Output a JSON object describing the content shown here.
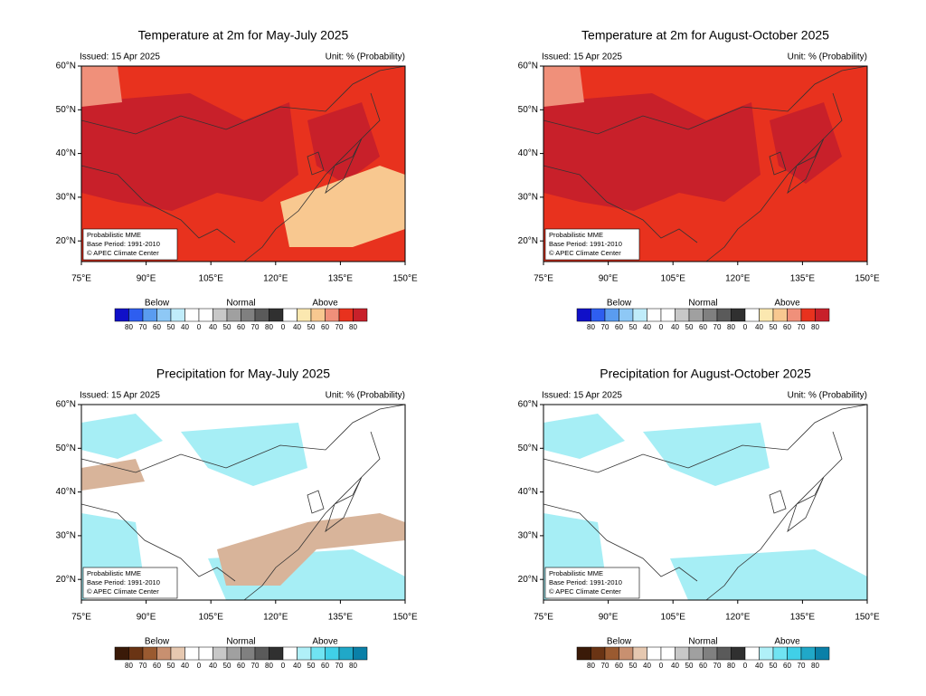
{
  "lat_labels": [
    "60°N",
    "50°N",
    "40°N",
    "30°N",
    "20°N"
  ],
  "lon_labels": [
    "75°E",
    "90°E",
    "105°E",
    "120°E",
    "135°E",
    "150°E"
  ],
  "panels": [
    {
      "title": "Temperature at 2m for May-July 2025",
      "issued": "Issued: 15 Apr 2025",
      "unit": "Unit: % (Probability)",
      "info": [
        "Probabilistic MME",
        "Base Period: 1991-2010",
        "© APEC Climate Center"
      ],
      "legend": {
        "groups": [
          "Below",
          "Normal",
          "Above"
        ],
        "colors": [
          "#1010c8",
          "#2e5ef0",
          "#5a9cf0",
          "#8ec8f5",
          "#c0ecfa",
          "#ffffff",
          "#ffffff",
          "#c8c8c8",
          "#a0a0a0",
          "#808080",
          "#5a5a5a",
          "#303030",
          "#ffffff",
          "#fbe8b0",
          "#f8c890",
          "#f0907a",
          "#e8321e",
          "#c8202a"
        ],
        "labels": [
          "80",
          "70",
          "60",
          "50",
          "40",
          "0",
          "40",
          "50",
          "60",
          "70",
          "80",
          "0",
          "40",
          "50",
          "60",
          "70",
          "80"
        ]
      }
    },
    {
      "title": "Temperature at 2m for August-October 2025",
      "issued": "Issued: 15 Apr 2025",
      "unit": "Unit: % (Probability)",
      "info": [
        "Probabilistic MME",
        "Base Period: 1991-2010",
        "© APEC Climate Center"
      ],
      "legend": {
        "groups": [
          "Below",
          "Normal",
          "Above"
        ],
        "colors": [
          "#1010c8",
          "#2e5ef0",
          "#5a9cf0",
          "#8ec8f5",
          "#c0ecfa",
          "#ffffff",
          "#ffffff",
          "#c8c8c8",
          "#a0a0a0",
          "#808080",
          "#5a5a5a",
          "#303030",
          "#ffffff",
          "#fbe8b0",
          "#f8c890",
          "#f0907a",
          "#e8321e",
          "#c8202a"
        ],
        "labels": [
          "80",
          "70",
          "60",
          "50",
          "40",
          "0",
          "40",
          "50",
          "60",
          "70",
          "80",
          "0",
          "40",
          "50",
          "60",
          "70",
          "80"
        ]
      }
    },
    {
      "title": "Precipitation for May-July 2025",
      "issued": "Issued: 15 Apr 2025",
      "unit": "Unit: % (Probability)",
      "info": [
        "Probabilistic MME",
        "Base Period: 1991-2010",
        "© APEC Climate Center"
      ],
      "legend": {
        "groups": [
          "Below",
          "Normal",
          "Above"
        ],
        "colors": [
          "#3a1a08",
          "#6a3414",
          "#9a5a30",
          "#c89070",
          "#e6c8b0",
          "#ffffff",
          "#ffffff",
          "#c8c8c8",
          "#a0a0a0",
          "#808080",
          "#5a5a5a",
          "#303030",
          "#ffffff",
          "#b0f0f8",
          "#70e4f2",
          "#40d0e8",
          "#20a8c8",
          "#0a80a8"
        ],
        "labels": [
          "80",
          "70",
          "60",
          "50",
          "40",
          "0",
          "40",
          "50",
          "60",
          "70",
          "80",
          "0",
          "40",
          "50",
          "60",
          "70",
          "80"
        ]
      }
    },
    {
      "title": "Precipitation for August-October 2025",
      "issued": "Issued: 15 Apr 2025",
      "unit": "Unit: % (Probability)",
      "info": [
        "Probabilistic MME",
        "Base Period: 1991-2010",
        "© APEC Climate Center"
      ],
      "legend": {
        "groups": [
          "Below",
          "Normal",
          "Above"
        ],
        "colors": [
          "#3a1a08",
          "#6a3414",
          "#9a5a30",
          "#c89070",
          "#e6c8b0",
          "#ffffff",
          "#ffffff",
          "#c8c8c8",
          "#a0a0a0",
          "#808080",
          "#5a5a5a",
          "#303030",
          "#ffffff",
          "#b0f0f8",
          "#70e4f2",
          "#40d0e8",
          "#20a8c8",
          "#0a80a8"
        ],
        "labels": [
          "80",
          "70",
          "60",
          "50",
          "40",
          "0",
          "40",
          "50",
          "60",
          "70",
          "80",
          "0",
          "40",
          "50",
          "60",
          "70",
          "80"
        ]
      }
    }
  ]
}
